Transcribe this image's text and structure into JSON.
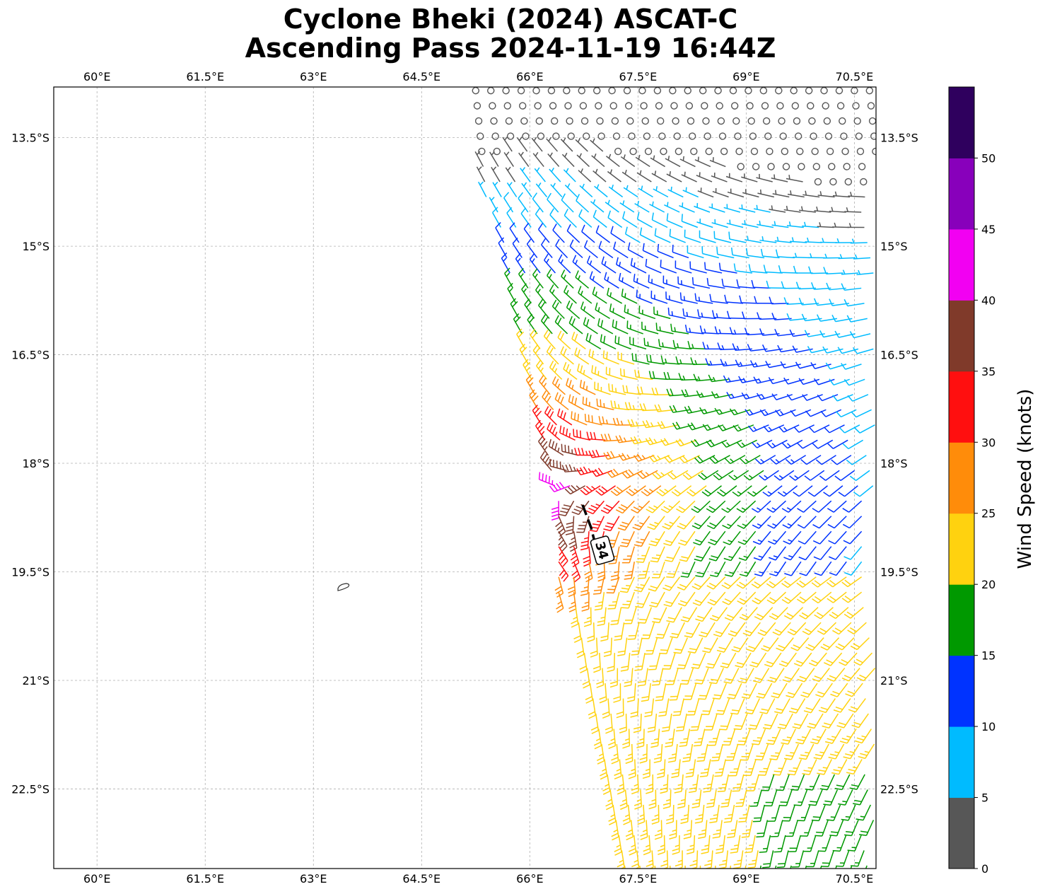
{
  "title": {
    "line1": "Cyclone Bheki (2024) ASCAT-C",
    "line2": "Ascending Pass 2024-11-19 16:44Z"
  },
  "map": {
    "lon_range": [
      59.4,
      70.8
    ],
    "lat_range": [
      -23.6,
      -12.8
    ],
    "lon_ticks": [
      60,
      61.5,
      63,
      64.5,
      66,
      67.5,
      69,
      70.5
    ],
    "lat_ticks": [
      -13.5,
      -15,
      -16.5,
      -18,
      -19.5,
      -21,
      -22.5
    ],
    "lon_tick_labels": [
      "60°E",
      "61.5°E",
      "63°E",
      "64.5°E",
      "66°E",
      "67.5°E",
      "69°E",
      "70.5°E"
    ],
    "lat_tick_labels": [
      "13.5°S",
      "15°S",
      "16.5°S",
      "18°S",
      "19.5°S",
      "21°S",
      "22.5°S"
    ],
    "gridlines": true,
    "island": {
      "name": "",
      "lon": 63.42,
      "lat": -19.71
    },
    "wind_barbs": "ASCAT wind barbs colored by speed; light winds north, strongest winds (35-45 kt) near 66.5°E 18-19.5°S on the swath's western edge",
    "contour": {
      "label": "34",
      "lon": 67.05,
      "lat": -19.18
    }
  },
  "colorbar": {
    "label": "Wind Speed (knots)",
    "ticks": [
      "0",
      "5",
      "10",
      "15",
      "20",
      "25",
      "30",
      "35",
      "40",
      "45",
      "50"
    ],
    "colors": [
      "#575757",
      "#00bbff",
      "#0033ff",
      "#009900",
      "#ffd20f",
      "#ff8c0a",
      "#ff0f0f",
      "#803a2a",
      "#f200f2",
      "#8800bb",
      "#2f005e"
    ]
  }
}
